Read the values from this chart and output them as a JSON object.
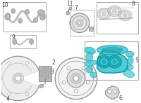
{
  "bg_color": "#ffffff",
  "gc": "#909090",
  "gc_light": "#b8b8b8",
  "hl": "#3ec8d4",
  "hl2": "#1aacb8",
  "hl_dark": "#0e8a98",
  "box_ec": "#aaaaaa",
  "lc": "#444444",
  "fig_width": 2.0,
  "fig_height": 1.47,
  "dpi": 100
}
